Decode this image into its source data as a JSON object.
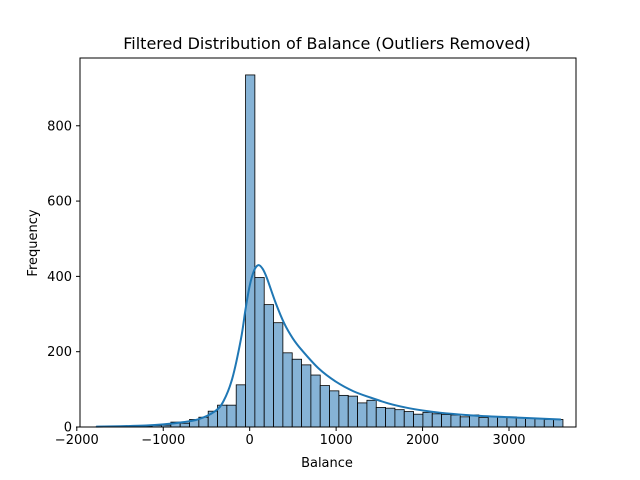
{
  "chart_data": {
    "type": "bar",
    "subtype": "histogram-with-kde",
    "title": "Filtered Distribution of Balance (Outliers Removed)",
    "xlabel": "Balance",
    "ylabel": "Frequency",
    "xlim": [
      -1963,
      3775
    ],
    "ylim": [
      0,
      980
    ],
    "xticks": [
      -2000,
      -1000,
      0,
      1000,
      2000,
      3000
    ],
    "xtick_labels": [
      "−2000",
      "−1000",
      "0",
      "1000",
      "2000",
      "3000"
    ],
    "yticks": [
      0,
      200,
      400,
      600,
      800
    ],
    "ytick_labels": [
      "0",
      "200",
      "400",
      "600",
      "800"
    ],
    "grid": false,
    "legend": "none",
    "bin_width": 108,
    "bins": [
      {
        "x0": -1776,
        "x1": -1668,
        "count": 1
      },
      {
        "x0": -1668,
        "x1": -1560,
        "count": 0
      },
      {
        "x0": -1560,
        "x1": -1452,
        "count": 1
      },
      {
        "x0": -1452,
        "x1": -1344,
        "count": 1
      },
      {
        "x0": -1344,
        "x1": -1236,
        "count": 1
      },
      {
        "x0": -1236,
        "x1": -1128,
        "count": 2
      },
      {
        "x0": -1128,
        "x1": -1020,
        "count": 4
      },
      {
        "x0": -1020,
        "x1": -912,
        "count": 5
      },
      {
        "x0": -912,
        "x1": -804,
        "count": 13
      },
      {
        "x0": -804,
        "x1": -696,
        "count": 10
      },
      {
        "x0": -696,
        "x1": -588,
        "count": 20
      },
      {
        "x0": -588,
        "x1": -480,
        "count": 26
      },
      {
        "x0": -480,
        "x1": -372,
        "count": 42
      },
      {
        "x0": -372,
        "x1": -264,
        "count": 58
      },
      {
        "x0": -264,
        "x1": -156,
        "count": 58
      },
      {
        "x0": -156,
        "x1": -48,
        "count": 112
      },
      {
        "x0": -48,
        "x1": 60,
        "count": 935
      },
      {
        "x0": 60,
        "x1": 168,
        "count": 397
      },
      {
        "x0": 168,
        "x1": 276,
        "count": 325
      },
      {
        "x0": 276,
        "x1": 384,
        "count": 277
      },
      {
        "x0": 384,
        "x1": 492,
        "count": 197
      },
      {
        "x0": 492,
        "x1": 600,
        "count": 180
      },
      {
        "x0": 600,
        "x1": 708,
        "count": 165
      },
      {
        "x0": 708,
        "x1": 816,
        "count": 138
      },
      {
        "x0": 816,
        "x1": 924,
        "count": 110
      },
      {
        "x0": 924,
        "x1": 1032,
        "count": 96
      },
      {
        "x0": 1032,
        "x1": 1140,
        "count": 84
      },
      {
        "x0": 1140,
        "x1": 1248,
        "count": 82
      },
      {
        "x0": 1248,
        "x1": 1356,
        "count": 64
      },
      {
        "x0": 1356,
        "x1": 1464,
        "count": 71
      },
      {
        "x0": 1464,
        "x1": 1572,
        "count": 52
      },
      {
        "x0": 1572,
        "x1": 1680,
        "count": 50
      },
      {
        "x0": 1680,
        "x1": 1788,
        "count": 46
      },
      {
        "x0": 1788,
        "x1": 1896,
        "count": 41
      },
      {
        "x0": 1896,
        "x1": 2004,
        "count": 34
      },
      {
        "x0": 2004,
        "x1": 2112,
        "count": 39
      },
      {
        "x0": 2112,
        "x1": 2220,
        "count": 35
      },
      {
        "x0": 2220,
        "x1": 2328,
        "count": 33
      },
      {
        "x0": 2328,
        "x1": 2436,
        "count": 32
      },
      {
        "x0": 2436,
        "x1": 2544,
        "count": 27
      },
      {
        "x0": 2544,
        "x1": 2652,
        "count": 32
      },
      {
        "x0": 2652,
        "x1": 2760,
        "count": 25
      },
      {
        "x0": 2760,
        "x1": 2868,
        "count": 28
      },
      {
        "x0": 2868,
        "x1": 2976,
        "count": 26
      },
      {
        "x0": 2976,
        "x1": 3084,
        "count": 27
      },
      {
        "x0": 3084,
        "x1": 3192,
        "count": 25
      },
      {
        "x0": 3192,
        "x1": 3300,
        "count": 24
      },
      {
        "x0": 3300,
        "x1": 3408,
        "count": 22
      },
      {
        "x0": 3408,
        "x1": 3516,
        "count": 20
      },
      {
        "x0": 3516,
        "x1": 3624,
        "count": 20
      }
    ],
    "kde": {
      "x": [
        -1776,
        -1500,
        -1200,
        -1000,
        -800,
        -600,
        -400,
        -300,
        -200,
        -100,
        -50,
        0,
        50,
        100,
        150,
        200,
        300,
        400,
        500,
        600,
        800,
        1000,
        1200,
        1400,
        1600,
        1800,
        2000,
        2200,
        2500,
        2800,
        3100,
        3400,
        3600
      ],
      "y": [
        1,
        2,
        4,
        7,
        12,
        20,
        42,
        70,
        130,
        235,
        310,
        375,
        415,
        430,
        420,
        395,
        330,
        275,
        235,
        205,
        155,
        120,
        95,
        78,
        63,
        52,
        44,
        38,
        32,
        28,
        25,
        22,
        20
      ]
    },
    "colors": {
      "bar_fill": "#86b3d6",
      "bar_edge": "#000000",
      "kde_line": "#1f77b4"
    }
  }
}
